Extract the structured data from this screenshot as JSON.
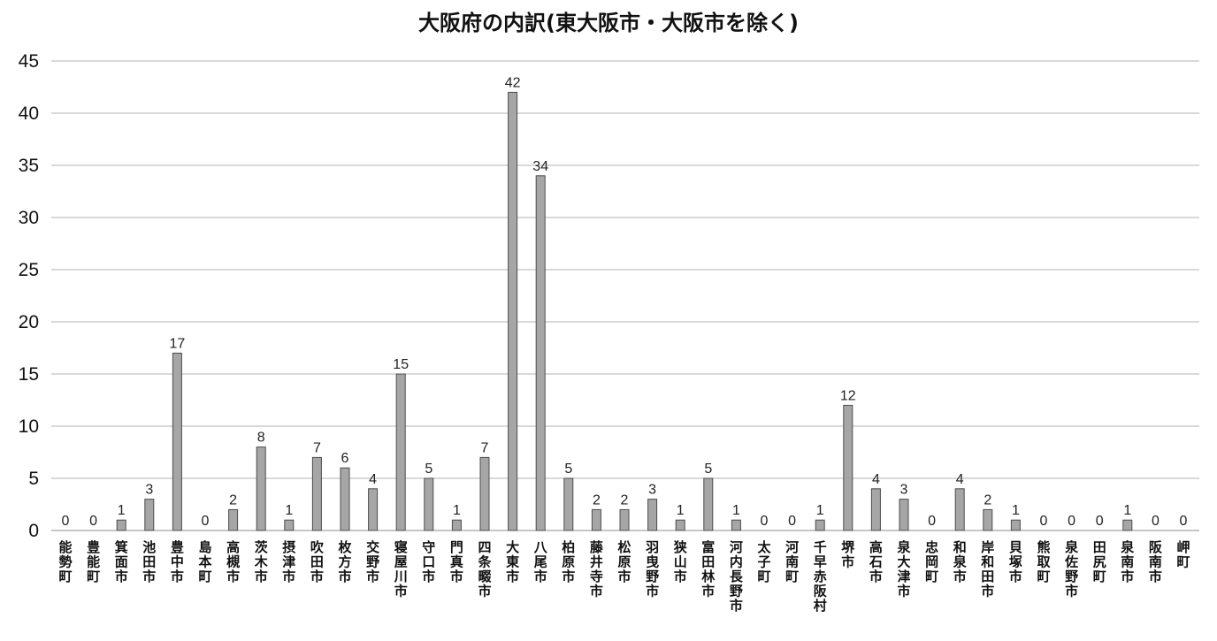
{
  "chart_data": {
    "type": "bar",
    "title": "大阪府の内訳(東大阪市・大阪市を除く)",
    "xlabel": "",
    "ylabel": "",
    "ylim": [
      0,
      45
    ],
    "yticks": [
      "0",
      "5",
      "10",
      "15",
      "20",
      "25",
      "30",
      "35",
      "40",
      "45"
    ],
    "grid": true,
    "legend": "none",
    "colors": {
      "bar_fill": "#a6a6a6",
      "bar_stroke": "#4d4d4d",
      "grid": "#b3b3b3"
    },
    "categories": [
      "能勢町",
      "豊能町",
      "箕面市",
      "池田市",
      "豊中市",
      "島本町",
      "高槻市",
      "茨木市",
      "摂津市",
      "吹田市",
      "枚方市",
      "交野市",
      "寝屋川市",
      "守口市",
      "門真市",
      "四条畷市",
      "大東市",
      "八尾市",
      "柏原市",
      "藤井寺市",
      "松原市",
      "羽曳野市",
      "狭山市",
      "富田林市",
      "河内長野市",
      "太子町",
      "河南町",
      "千早赤阪村",
      "堺市",
      "高石市",
      "泉大津市",
      "忠岡町",
      "和泉市",
      "岸和田市",
      "貝塚市",
      "熊取町",
      "泉佐野市",
      "田尻町",
      "泉南市",
      "阪南市",
      "岬町"
    ],
    "values": [
      0,
      0,
      1,
      3,
      17,
      0,
      2,
      8,
      1,
      7,
      6,
      4,
      15,
      5,
      1,
      7,
      42,
      34,
      5,
      2,
      2,
      3,
      1,
      5,
      1,
      0,
      0,
      1,
      12,
      4,
      3,
      0,
      4,
      2,
      1,
      0,
      0,
      0,
      1,
      0,
      0
    ]
  }
}
